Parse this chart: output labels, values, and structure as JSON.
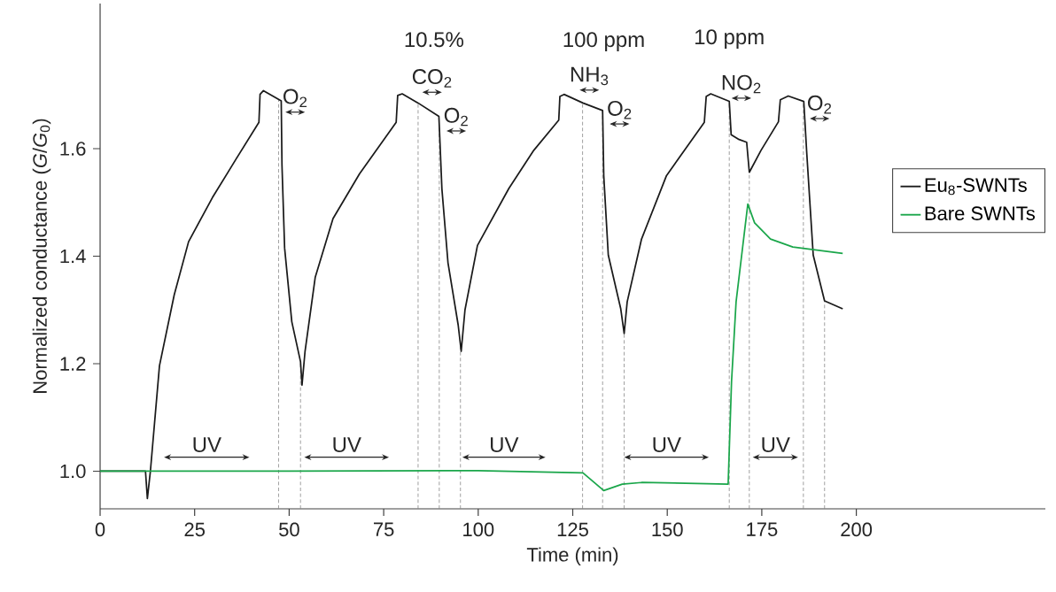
{
  "chart_data": {
    "type": "line",
    "xlabel": "Time (min)",
    "ylabel": "Normalized conductance (*G*/*G*$_{0}$)",
    "xlim": [
      0,
      250
    ],
    "ylim": [
      0.93,
      1.87
    ],
    "xticks": [
      0,
      25,
      50,
      75,
      100,
      125,
      150,
      175,
      200
    ],
    "yticks": [
      {
        "value": 1.0,
        "label": "1.0"
      },
      {
        "value": 1.2,
        "label": "1.2"
      },
      {
        "value": 1.4,
        "label": "1.4"
      },
      {
        "value": 1.6,
        "label": "1.6"
      }
    ],
    "legend": "right",
    "grid": false,
    "marker": "none",
    "line_style": "solid",
    "series": [
      {
        "name": "Eu$_{8}$-SWNTs",
        "color": "#1a1a1a",
        "x": [
          0,
          12.0,
          12.5,
          13.3,
          15.7,
          19.6,
          23.4,
          29.7,
          35.9,
          42.0,
          42.3,
          43.2,
          47.9,
          48.1,
          48.8,
          50.7,
          53.0,
          53.4,
          54.2,
          56.9,
          61.6,
          68.6,
          78.3,
          78.7,
          79.9,
          84.1,
          89.6,
          90.4,
          92.0,
          94.7,
          95.5,
          96.5,
          99.8,
          108.1,
          114.7,
          121.3,
          121.6,
          122.7,
          127.7,
          132.9,
          133.2,
          134.4,
          137.7,
          138.6,
          139.4,
          143.2,
          149.8,
          159.8,
          160.3,
          161.5,
          166.4,
          166.9,
          169.0,
          171.0,
          171.7,
          174.8,
          179.4,
          179.9,
          182.0,
          186.1,
          186.9,
          188.6,
          191.6,
          196.4
        ],
        "values": [
          1.0,
          1.0,
          0.949,
          1.0,
          1.196,
          1.328,
          1.427,
          1.509,
          1.58,
          1.649,
          1.701,
          1.708,
          1.689,
          1.569,
          1.415,
          1.278,
          1.204,
          1.16,
          1.223,
          1.361,
          1.47,
          1.553,
          1.649,
          1.699,
          1.702,
          1.685,
          1.66,
          1.525,
          1.388,
          1.272,
          1.223,
          1.3,
          1.42,
          1.526,
          1.597,
          1.653,
          1.697,
          1.701,
          1.685,
          1.671,
          1.55,
          1.402,
          1.302,
          1.256,
          1.315,
          1.432,
          1.55,
          1.649,
          1.697,
          1.702,
          1.688,
          1.626,
          1.617,
          1.612,
          1.556,
          1.597,
          1.65,
          1.691,
          1.698,
          1.688,
          1.591,
          1.402,
          1.317,
          1.302
        ]
      },
      {
        "name": "Bare SWNTs",
        "color": "#1aa64a",
        "x": [
          0,
          50,
          100,
          127.7,
          133.2,
          138.1,
          143.2,
          166.1,
          167.0,
          168.2,
          171.3,
          173.1,
          177.3,
          183.2,
          196.4
        ],
        "values": [
          1.0,
          1.0,
          1.001,
          0.997,
          0.964,
          0.976,
          0.979,
          0.976,
          1.167,
          1.315,
          1.497,
          1.462,
          1.432,
          1.417,
          1.405
        ]
      }
    ],
    "ref_lines": [
      {
        "axis": "x",
        "value": 47.2,
        "color": "#888888",
        "line_style": "dashed"
      },
      {
        "axis": "x",
        "value": 53.0,
        "color": "#888888",
        "line_style": "dashed"
      },
      {
        "axis": "x",
        "value": 84.1,
        "color": "#888888",
        "line_style": "dashed"
      },
      {
        "axis": "x",
        "value": 89.7,
        "color": "#888888",
        "line_style": "dashed"
      },
      {
        "axis": "x",
        "value": 95.3,
        "color": "#888888",
        "line_style": "dashed"
      },
      {
        "axis": "x",
        "value": 127.6,
        "color": "#888888",
        "line_style": "dashed"
      },
      {
        "axis": "x",
        "value": 132.9,
        "color": "#888888",
        "line_style": "dashed"
      },
      {
        "axis": "x",
        "value": 138.6,
        "color": "#888888",
        "line_style": "dashed"
      },
      {
        "axis": "x",
        "value": 166.4,
        "color": "#888888",
        "line_style": "dashed"
      },
      {
        "axis": "x",
        "value": 171.7,
        "color": "#888888",
        "line_style": "dashed"
      },
      {
        "axis": "x",
        "value": 186.0,
        "color": "#888888",
        "line_style": "dashed"
      },
      {
        "axis": "x",
        "value": 191.6,
        "color": "#888888",
        "line_style": "dashed"
      }
    ],
    "annotations": [
      "UV",
      "UV",
      "UV",
      "UV",
      "UV",
      "O$_{2}$",
      "10.5%",
      "CO$_{2}$",
      "O$_{2}$",
      "100 ppm",
      "NH$_{3}$",
      "O$_{2}$",
      "10 ppm",
      "NO$_{2}$",
      "O$_{2}$"
    ]
  }
}
